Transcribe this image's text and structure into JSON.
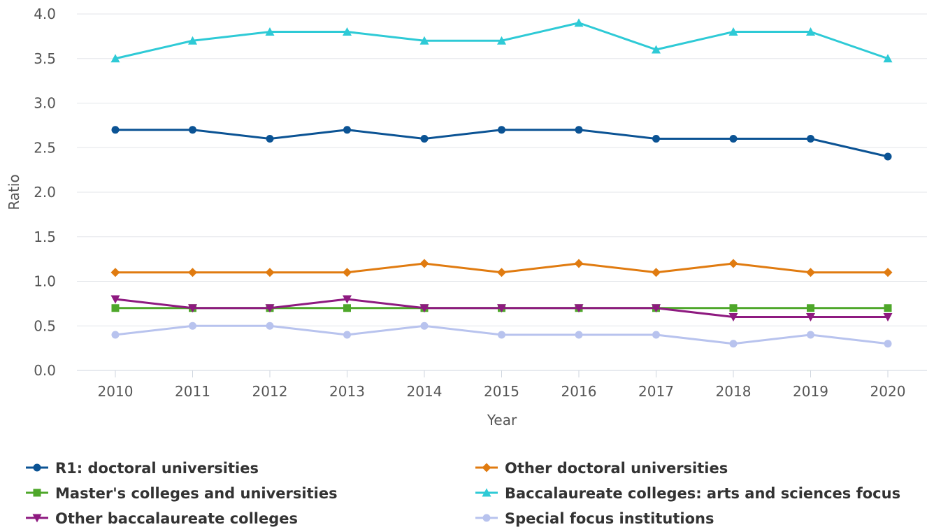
{
  "chart_data": {
    "type": "line",
    "xlabel": "Year",
    "ylabel": "Ratio",
    "ylim": [
      0,
      4
    ],
    "yticks": [
      "0.0",
      "0.5",
      "1.0",
      "1.5",
      "2.0",
      "2.5",
      "3.0",
      "3.5",
      "4.0"
    ],
    "grid": true,
    "legend_position": "bottom",
    "x": [
      "2010",
      "2011",
      "2012",
      "2013",
      "2014",
      "2015",
      "2016",
      "2017",
      "2018",
      "2019",
      "2020"
    ],
    "series": [
      {
        "name": "R1: doctoral universities",
        "color": "#0b5394",
        "marker": "circle",
        "values": [
          2.7,
          2.7,
          2.6,
          2.7,
          2.6,
          2.7,
          2.7,
          2.6,
          2.6,
          2.6,
          2.4
        ]
      },
      {
        "name": "Other doctoral universities",
        "color": "#e07b10",
        "marker": "diamond",
        "values": [
          1.1,
          1.1,
          1.1,
          1.1,
          1.2,
          1.1,
          1.2,
          1.1,
          1.2,
          1.1,
          1.1
        ]
      },
      {
        "name": "Master's colleges and universities",
        "color": "#4ea72a",
        "marker": "square",
        "values": [
          0.7,
          0.7,
          0.7,
          0.7,
          0.7,
          0.7,
          0.7,
          0.7,
          0.7,
          0.7,
          0.7
        ]
      },
      {
        "name": "Baccalaureate colleges: arts and sciences focus",
        "color": "#2ecad6",
        "marker": "triangle-up",
        "values": [
          3.5,
          3.7,
          3.8,
          3.8,
          3.7,
          3.7,
          3.9,
          3.6,
          3.8,
          3.8,
          3.5
        ]
      },
      {
        "name": "Other baccalaureate colleges",
        "color": "#8e1a80",
        "marker": "triangle-down",
        "values": [
          0.8,
          0.7,
          0.7,
          0.8,
          0.7,
          0.7,
          0.7,
          0.7,
          0.6,
          0.6,
          0.6
        ]
      },
      {
        "name": "Special focus institutions",
        "color": "#b8c3ee",
        "marker": "circle",
        "values": [
          0.4,
          0.5,
          0.5,
          0.4,
          0.5,
          0.4,
          0.4,
          0.4,
          0.3,
          0.4,
          0.3
        ]
      }
    ]
  }
}
